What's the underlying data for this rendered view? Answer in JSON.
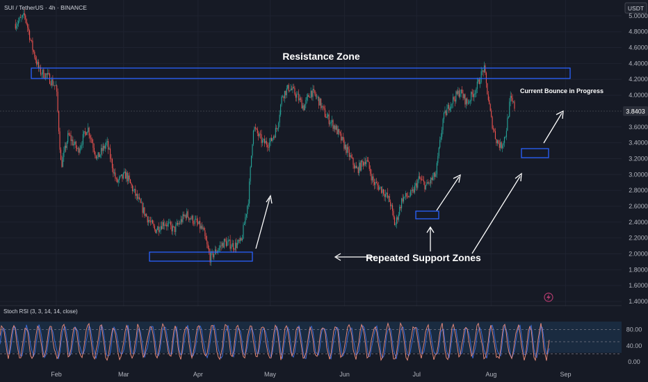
{
  "chart_data": {
    "type": "candlestick",
    "symbol_title": "SUI / TetherUS · 4h · BINANCE",
    "currency": "USDT",
    "last_price": "3.8403",
    "y_ticks": [
      "5.0000",
      "4.8000",
      "4.6000",
      "4.4000",
      "4.2000",
      "4.0000",
      "3.6000",
      "3.4000",
      "3.2000",
      "3.0000",
      "2.8000",
      "2.6000",
      "2.4000",
      "2.2000",
      "2.0000",
      "1.8000",
      "1.6000",
      "1.4000"
    ],
    "x_ticks": [
      "Feb",
      "Mar",
      "Apr",
      "May",
      "Jun",
      "Jul",
      "Aug",
      "Sep"
    ],
    "ylim": [
      1.4,
      5.1
    ],
    "price_path": [
      [
        "Jan 15",
        4.9
      ],
      [
        "Jan 19",
        5.0
      ],
      [
        "Jan 22",
        4.6
      ],
      [
        "Jan 25",
        4.3
      ],
      [
        "Jan 28",
        4.25
      ],
      [
        "Feb 1",
        4.1
      ],
      [
        "Feb 3",
        3.1
      ],
      [
        "Feb 6",
        3.5
      ],
      [
        "Feb 10",
        3.3
      ],
      [
        "Feb 14",
        3.6
      ],
      [
        "Feb 18",
        3.2
      ],
      [
        "Feb 22",
        3.4
      ],
      [
        "Feb 26",
        2.9
      ],
      [
        "Mar 2",
        3.0
      ],
      [
        "Mar 5",
        2.8
      ],
      [
        "Mar 10",
        2.5
      ],
      [
        "Mar 14",
        2.3
      ],
      [
        "Mar 18",
        2.4
      ],
      [
        "Mar 22",
        2.3
      ],
      [
        "Mar 27",
        2.5
      ],
      [
        "Mar 31",
        2.4
      ],
      [
        "Apr 3",
        2.3
      ],
      [
        "Apr 6",
        1.95
      ],
      [
        "Apr 9",
        2.05
      ],
      [
        "Apr 12",
        2.15
      ],
      [
        "Apr 16",
        2.1
      ],
      [
        "Apr 19",
        2.15
      ],
      [
        "Apr 22",
        2.7
      ],
      [
        "Apr 24",
        3.6
      ],
      [
        "Apr 28",
        3.4
      ],
      [
        "May 1",
        3.4
      ],
      [
        "May 4",
        3.6
      ],
      [
        "May 6",
        4.0
      ],
      [
        "May 9",
        4.1
      ],
      [
        "May 12",
        4.0
      ],
      [
        "May 15",
        3.85
      ],
      [
        "May 18",
        4.05
      ],
      [
        "May 21",
        3.95
      ],
      [
        "May 24",
        3.75
      ],
      [
        "May 28",
        3.6
      ],
      [
        "Jun 2",
        3.3
      ],
      [
        "Jun 6",
        3.05
      ],
      [
        "Jun 10",
        3.2
      ],
      [
        "Jun 13",
        2.9
      ],
      [
        "Jun 17",
        2.8
      ],
      [
        "Jun 20",
        2.65
      ],
      [
        "Jun 22",
        2.35
      ],
      [
        "Jun 25",
        2.7
      ],
      [
        "Jun 29",
        2.75
      ],
      [
        "Jul 2",
        2.95
      ],
      [
        "Jul 5",
        2.85
      ],
      [
        "Jul 9",
        3.0
      ],
      [
        "Jul 12",
        3.7
      ],
      [
        "Jul 15",
        3.9
      ],
      [
        "Jul 19",
        4.05
      ],
      [
        "Jul 22",
        3.9
      ],
      [
        "Jul 26",
        4.1
      ],
      [
        "Jul 29",
        4.35
      ],
      [
        "Aug 1",
        3.7
      ],
      [
        "Aug 3",
        3.45
      ],
      [
        "Aug 5",
        3.35
      ],
      [
        "Aug 7",
        3.5
      ],
      [
        "Aug 9",
        3.95
      ],
      [
        "Aug 11",
        3.84
      ]
    ],
    "annotations": {
      "resistance_label": "Resistance Zone",
      "support_label": "Repeated Support Zones",
      "bounce_label": "Current Bounce in Progress"
    },
    "indicator": {
      "name": "Stoch RSI",
      "label": "Stoch RSI (3, 3, 14, 14, close)",
      "ticks": [
        "80.00",
        "40.00",
        "0.00"
      ],
      "levels": [
        80,
        50,
        20
      ]
    },
    "colors": {
      "background": "#161a25",
      "up": "#26a69a",
      "down": "#ef5350",
      "zone": "#2962ff",
      "k_line": "#f28e7c",
      "d_line": "#3f6fe0",
      "indicator_band": "#1a2b40",
      "last_price_tag": "#2a2e39",
      "bolt": "#b03a6d"
    },
    "icons": [
      "lightning-bolt-icon"
    ]
  }
}
